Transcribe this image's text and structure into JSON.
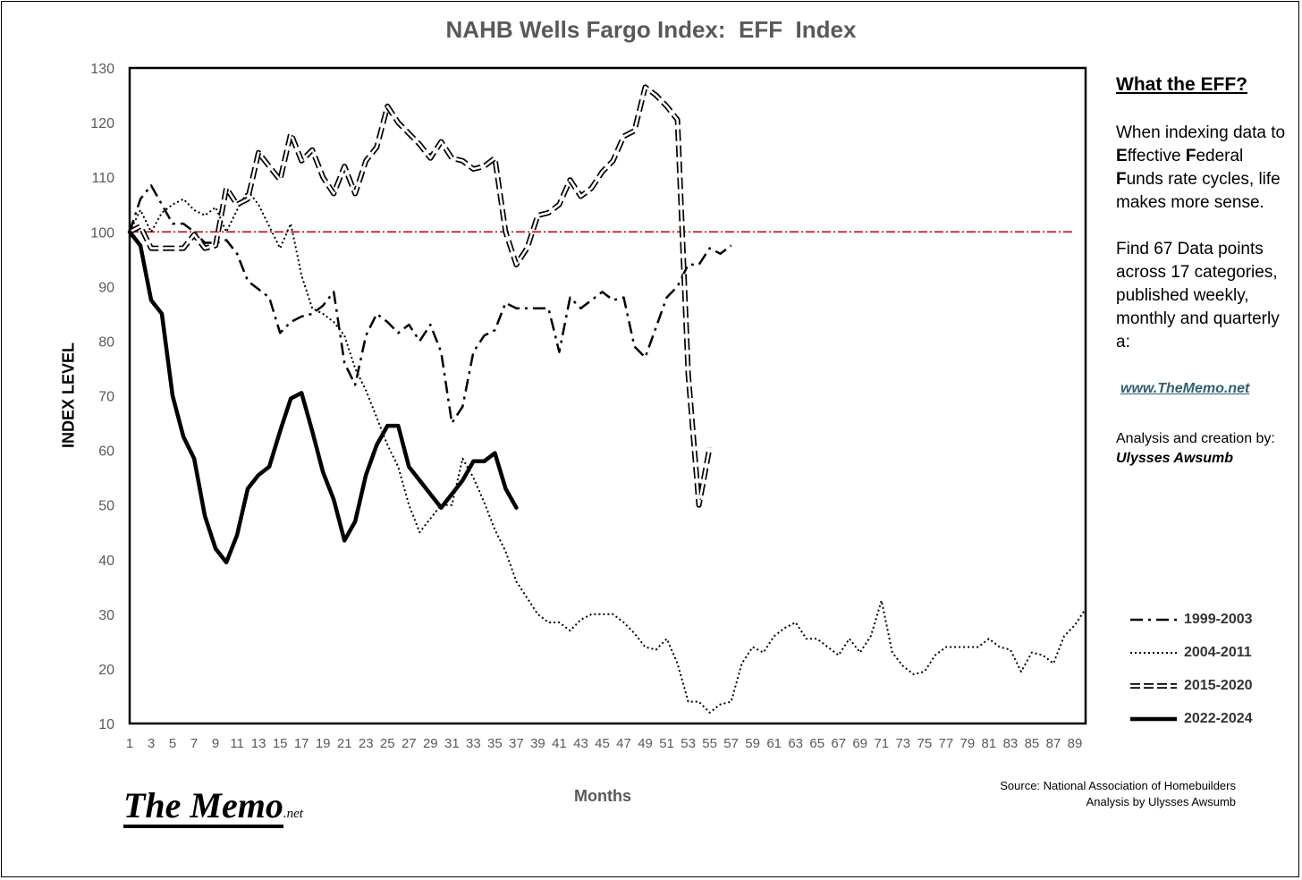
{
  "title": "NAHB Wells Fargo Index:  EFF  Index",
  "side_panel": {
    "heading": "What the EFF?",
    "paragraph1_html": "When indexing data to <b>E</b>ffective <b>F</b>ederal <b>F</b>unds rate cycles, life makes more sense.",
    "paragraph2": "Find 67 Data points across 17 categories, published weekly, monthly and quarterly a:",
    "link": "www.TheMemo.net",
    "credit": "Analysis and creation by:",
    "author": "Ulysses Awsumb"
  },
  "source_lines": [
    "Source: National Association of Homebuilders",
    "Analysis by Ulysses Awsumb"
  ],
  "logo": {
    "main": "The Memo",
    "suffix": ".net"
  },
  "colors": {
    "reference_line": "#c00000",
    "series": "#000000",
    "title": "#595959",
    "link": "#2f5f6f"
  },
  "chart_data": {
    "type": "line",
    "title": "NAHB Wells Fargo Index:  EFF  Index",
    "xlabel": "Months",
    "ylabel": "INDEX LEVEL",
    "xlim": [
      1,
      90
    ],
    "ylim": [
      10,
      130
    ],
    "yticks": [
      10,
      20,
      30,
      40,
      50,
      60,
      70,
      80,
      90,
      100,
      110,
      120,
      130
    ],
    "xticks": [
      1,
      3,
      5,
      7,
      9,
      11,
      13,
      15,
      17,
      19,
      21,
      23,
      25,
      27,
      29,
      31,
      33,
      35,
      37,
      39,
      41,
      43,
      45,
      47,
      49,
      51,
      53,
      55,
      57,
      59,
      61,
      63,
      65,
      67,
      69,
      71,
      73,
      75,
      77,
      79,
      81,
      83,
      85,
      87,
      89
    ],
    "grid": false,
    "legend_position": "right",
    "reference_line": {
      "y": 100,
      "style": "dash-dot"
    },
    "series": [
      {
        "name": "1999-2003",
        "style": "dash-dot",
        "values": [
          100,
          106,
          108.5,
          105,
          101.5,
          101.5,
          100,
          98,
          98,
          98.5,
          96,
          91,
          89.5,
          88,
          81.5,
          83.5,
          84.5,
          85,
          86.5,
          89,
          76,
          72,
          81,
          85,
          83.5,
          81.5,
          83,
          80,
          83,
          78,
          65,
          68,
          78,
          81,
          82,
          87,
          86,
          86,
          86,
          86,
          78,
          88,
          86,
          87.5,
          89,
          87.5,
          88,
          79,
          77,
          82.5,
          88,
          90,
          94,
          94,
          97,
          96,
          97.5
        ]
      },
      {
        "name": "2004-2011",
        "style": "dotted",
        "values": [
          100,
          104,
          100,
          103.5,
          105,
          106,
          104,
          103,
          104.5,
          100,
          104,
          107.5,
          105,
          101,
          97,
          101.5,
          92,
          86,
          85,
          83.5,
          81,
          75,
          71,
          66,
          61,
          57,
          50,
          45,
          47.5,
          50,
          50,
          58.5,
          55,
          50.5,
          45.5,
          41.5,
          36,
          33,
          30,
          28.5,
          28.5,
          27,
          29,
          30,
          30,
          30,
          28.5,
          26.5,
          24,
          23.5,
          25.5,
          21,
          14,
          14,
          12,
          13.5,
          14,
          21,
          24,
          23,
          26,
          27.5,
          28.5,
          25.5,
          25.5,
          24,
          22.5,
          25.5,
          23,
          26,
          32.5,
          23,
          20.5,
          19,
          19.5,
          22.5,
          24,
          24,
          24,
          24,
          25.5,
          24,
          23.5,
          19.5,
          23,
          22.5,
          21,
          26,
          28,
          31
        ]
      },
      {
        "name": "2015-2020",
        "style": "open-dash",
        "values": [
          100,
          101,
          97,
          97,
          97,
          97,
          99.5,
          97,
          97.5,
          108,
          105,
          106,
          114.5,
          112,
          109.5,
          118,
          113,
          115,
          110,
          107,
          112,
          107,
          113,
          115.5,
          123,
          120,
          118,
          116,
          113.5,
          116.5,
          113.5,
          113,
          111.5,
          112,
          113.5,
          100,
          94,
          97,
          103,
          103.5,
          105,
          109.5,
          106.5,
          108,
          111,
          113,
          117.5,
          118.5,
          126.5,
          125,
          123,
          120.5,
          74,
          50,
          60.5
        ]
      },
      {
        "name": "2022-2024",
        "style": "solid-thick",
        "values": [
          100,
          97.5,
          87.5,
          85,
          70,
          62.5,
          58.5,
          48,
          42,
          39.5,
          44.5,
          53,
          55.5,
          57,
          63.5,
          69.5,
          70.5,
          63.5,
          56,
          51,
          43.5,
          47,
          55.5,
          61,
          64.5,
          64.5,
          57,
          54.5,
          52,
          49.5,
          52,
          54.5,
          58,
          58,
          59.5,
          53,
          49.5
        ]
      }
    ]
  }
}
